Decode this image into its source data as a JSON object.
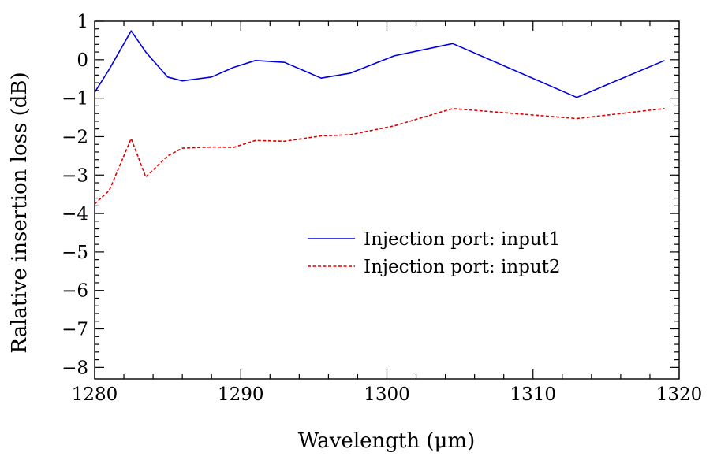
{
  "chart_data": {
    "type": "line",
    "title": "",
    "xlabel": "Wavelength (μm)",
    "ylabel": "Ralative insertion loss  (dB)",
    "xlim": [
      1280,
      1320
    ],
    "ylim": [
      -8.3,
      1.0
    ],
    "xticks": [
      1280,
      1290,
      1300,
      1310,
      1320
    ],
    "xtick_labels": [
      "1280",
      "1290",
      "1300",
      "1310",
      "1320"
    ],
    "yticks": [
      1,
      0,
      -1,
      -2,
      -3,
      -4,
      -5,
      -6,
      -7,
      -8
    ],
    "ytick_labels": [
      "1",
      "0",
      "−1",
      "−2",
      "−3",
      "−4",
      "−5",
      "−6",
      "−7",
      "−8"
    ],
    "grid": false,
    "legend_position": "center-right",
    "series": [
      {
        "name": "Injection port: input1",
        "color": "#0000dd",
        "style": "solid",
        "x": [
          1280,
          1281,
          1282.5,
          1283.5,
          1285,
          1286,
          1288,
          1289.5,
          1291,
          1293,
          1295.5,
          1297.5,
          1300.5,
          1304.5,
          1313,
          1319
        ],
        "y": [
          -0.85,
          -0.25,
          0.75,
          0.2,
          -0.45,
          -0.55,
          -0.45,
          -0.2,
          -0.02,
          -0.07,
          -0.48,
          -0.35,
          0.1,
          0.42,
          -0.98,
          -0.02
        ]
      },
      {
        "name": "Injection port: input2",
        "color": "#dd0000",
        "style": "dashed",
        "x": [
          1280,
          1281,
          1282.5,
          1283.5,
          1285,
          1286,
          1288,
          1289.5,
          1291,
          1293,
          1295.5,
          1297.5,
          1300.5,
          1304.5,
          1313,
          1319
        ],
        "y": [
          -3.75,
          -3.4,
          -2.05,
          -3.05,
          -2.5,
          -2.3,
          -2.27,
          -2.28,
          -2.1,
          -2.12,
          -1.98,
          -1.95,
          -1.72,
          -1.27,
          -1.53,
          -1.27
        ]
      }
    ]
  }
}
